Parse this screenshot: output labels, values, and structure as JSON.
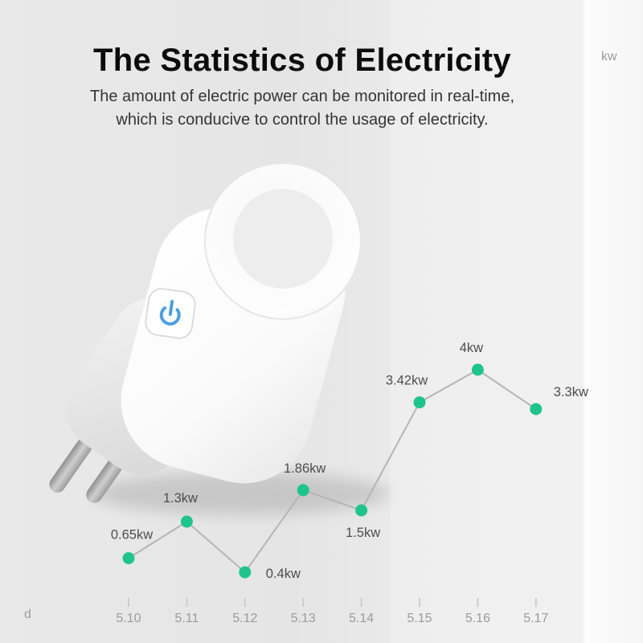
{
  "page": {
    "title": "The Statistics of Electricity",
    "subtitle_line1": "The amount of electric power can be monitored in real-time,",
    "subtitle_line2": "which is conducive to control the usage of electricity."
  },
  "plug": {
    "description": "white smart plug with power button",
    "power_icon_color": "#4d9fe0"
  },
  "chart_data": {
    "type": "line",
    "x": [
      "5.10",
      "5.11",
      "5.12",
      "5.13",
      "5.14",
      "5.15",
      "5.16",
      "5.17"
    ],
    "values": [
      0.65,
      1.3,
      0.4,
      1.86,
      1.5,
      3.42,
      4,
      3.3
    ],
    "point_labels": [
      "0.65kw",
      "1.3kw",
      "0.4kw",
      "1.86kw",
      "1.5kw",
      "3.42kw",
      "4kw",
      "3.3kw"
    ],
    "ylabel": "kw",
    "xlabel": "d",
    "ylim": [
      0,
      4.5
    ],
    "grid": false,
    "legend": false,
    "colors": {
      "point": "#1fc48c",
      "line": "#b5b5b5",
      "label": "#4d4d4d",
      "axis": "#9b9b9b",
      "tick": "#cccccc"
    }
  }
}
